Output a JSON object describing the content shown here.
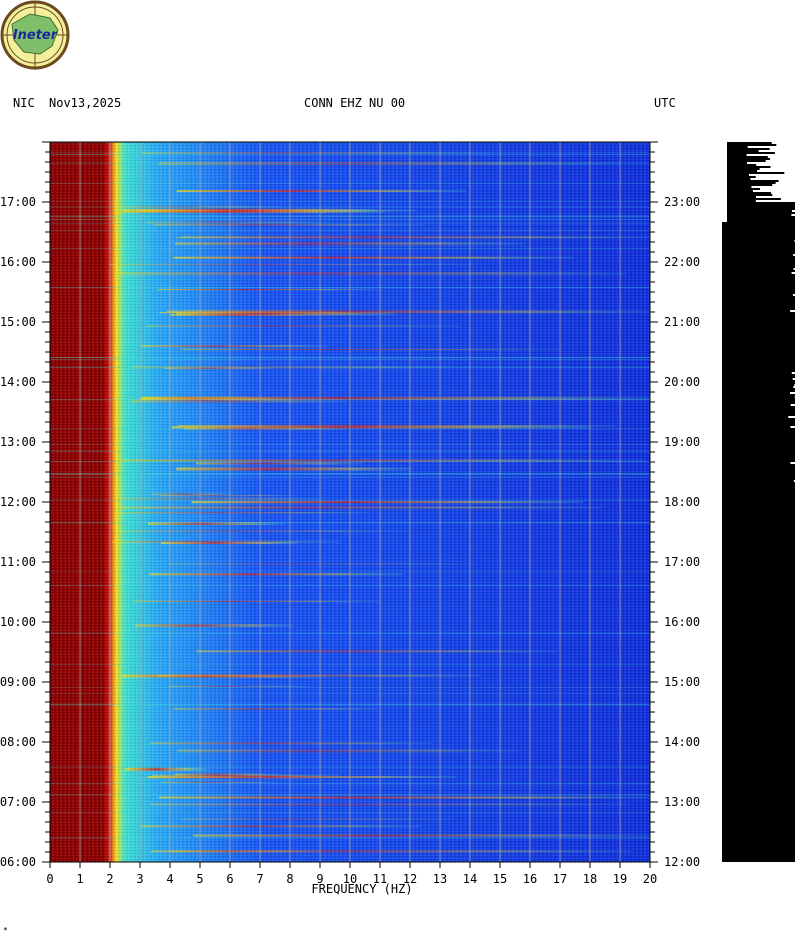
{
  "header": {
    "station_region": "NIC",
    "date": "Nov13,2025",
    "channel": "CONN EHZ NU 00",
    "timezone": "UTC"
  },
  "logo": {
    "text": "Ineter"
  },
  "corner_mark": "*",
  "chart_data": {
    "type": "heatmap",
    "xlabel": "FREQUENCY (HZ)",
    "x_ticks": [
      "0",
      "1",
      "2",
      "3",
      "4",
      "5",
      "6",
      "7",
      "8",
      "9",
      "10",
      "11",
      "12",
      "13",
      "14",
      "15",
      "16",
      "17",
      "18",
      "19",
      "20"
    ],
    "xlim": [
      0,
      20
    ],
    "y_left_ticks": [
      "06:00",
      "07:00",
      "08:00",
      "09:00",
      "10:00",
      "11:00",
      "12:00",
      "13:00",
      "14:00",
      "15:00",
      "16:00",
      "17:00"
    ],
    "y_right_ticks": [
      "12:00",
      "13:00",
      "14:00",
      "15:00",
      "16:00",
      "17:00",
      "18:00",
      "19:00",
      "20:00",
      "21:00",
      "22:00",
      "23:00"
    ],
    "ylim_hours_local": [
      6,
      18
    ],
    "grid": true,
    "colormap": [
      "#0a1ec8",
      "#1a55f0",
      "#2aa8f5",
      "#40e0d0",
      "#f0e020",
      "#e02010",
      "#8b0000"
    ]
  }
}
